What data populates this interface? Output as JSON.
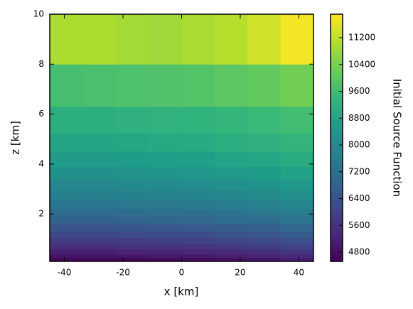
{
  "chart_data": {
    "type": "heatmap",
    "xlabel": "x [km]",
    "ylabel": "z [km]",
    "colorbar_label": "Initial Source Function",
    "colormap": "viridis",
    "x_edges": [
      -45,
      -33.75,
      -22.5,
      -11.25,
      0,
      11.25,
      22.5,
      33.75,
      45
    ],
    "y_edges": [
      0.1,
      0.25,
      0.4,
      0.6,
      0.8,
      1.05,
      1.3,
      1.6,
      1.9,
      2.2,
      2.55,
      2.95,
      3.4,
      3.9,
      4.5,
      5.25,
      6.3,
      8,
      10
    ],
    "values": [
      [
        4600,
        4600,
        4650,
        4700,
        4750,
        4850,
        4950,
        5100
      ],
      [
        4900,
        4900,
        4950,
        5000,
        5050,
        5150,
        5250,
        5400
      ],
      [
        5200,
        5200,
        5250,
        5300,
        5350,
        5450,
        5550,
        5700
      ],
      [
        5500,
        5500,
        5550,
        5600,
        5650,
        5750,
        5850,
        6000
      ],
      [
        5800,
        5800,
        5850,
        5900,
        5950,
        6050,
        6150,
        6300
      ],
      [
        6100,
        6100,
        6150,
        6200,
        6250,
        6350,
        6450,
        6600
      ],
      [
        6450,
        6450,
        6500,
        6550,
        6600,
        6700,
        6800,
        6950
      ],
      [
        6800,
        6800,
        6850,
        6900,
        6950,
        7050,
        7150,
        7300
      ],
      [
        7100,
        7100,
        7150,
        7200,
        7250,
        7350,
        7450,
        7600
      ],
      [
        7400,
        7400,
        7450,
        7500,
        7550,
        7650,
        7750,
        7900
      ],
      [
        7700,
        7700,
        7750,
        7800,
        7850,
        7950,
        8050,
        8200
      ],
      [
        7950,
        7950,
        8000,
        8050,
        8100,
        8200,
        8300,
        8450
      ],
      [
        8250,
        8250,
        8300,
        8350,
        8400,
        8500,
        8600,
        8750
      ],
      [
        8550,
        8550,
        8600,
        8650,
        8700,
        8800,
        8900,
        9050
      ],
      [
        8850,
        8850,
        8900,
        8950,
        9000,
        9100,
        9200,
        9350
      ],
      [
        9150,
        9150,
        9200,
        9250,
        9300,
        9400,
        9500,
        9650
      ],
      [
        9700,
        9750,
        9800,
        9850,
        9900,
        10000,
        10100,
        10300
      ],
      [
        11000,
        11000,
        10900,
        10850,
        10950,
        11100,
        11400,
        11800
      ]
    ],
    "xlim": [
      -45,
      45
    ],
    "ylim": [
      0.1,
      10
    ],
    "xticks": [
      -40,
      -20,
      0,
      20,
      40
    ],
    "yticks": [
      2,
      4,
      6,
      8,
      10
    ],
    "clim": [
      4525,
      11900
    ],
    "cticks": [
      4800,
      5600,
      6400,
      7200,
      8000,
      8800,
      9600,
      10400,
      11200
    ]
  }
}
